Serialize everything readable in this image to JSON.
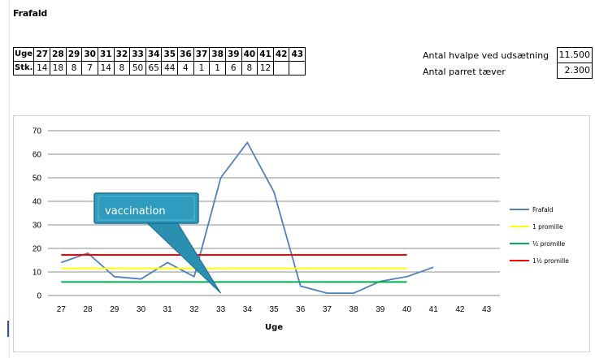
{
  "sheet": {
    "title": "Frafald"
  },
  "week_table": {
    "header_label": "Uge",
    "row_label": "Stk.",
    "weeks": [
      "27",
      "28",
      "29",
      "30",
      "31",
      "32",
      "33",
      "34",
      "35",
      "36",
      "37",
      "38",
      "39",
      "40",
      "41",
      "42",
      "43"
    ],
    "counts": [
      "14",
      "18",
      "8",
      "7",
      "14",
      "8",
      "50",
      "65",
      "44",
      "4",
      "1",
      "1",
      "6",
      "8",
      "12",
      "",
      ""
    ]
  },
  "info": {
    "puppies_label": "Antal hvalpe ved udsætning",
    "puppies_value": "11.500",
    "mated_label": "Antal parret tæver",
    "mated_value": "2.300"
  },
  "chart_data": {
    "type": "line",
    "xlabel": "Uge",
    "ylabel": "",
    "x": [
      27,
      28,
      29,
      30,
      31,
      32,
      33,
      34,
      35,
      36,
      37,
      38,
      39,
      40,
      41,
      42,
      43
    ],
    "ylim": [
      0,
      70
    ],
    "yticks": [
      0,
      10,
      20,
      30,
      40,
      50,
      60,
      70
    ],
    "grid": true,
    "legend": "right",
    "series": [
      {
        "name": "Frafald",
        "color": "#4f81bd",
        "x": [
          27,
          28,
          29,
          30,
          31,
          32,
          33,
          34,
          35,
          36,
          37,
          38,
          39,
          40,
          41
        ],
        "y": [
          14,
          18,
          8,
          7,
          14,
          8,
          50,
          65,
          44,
          4,
          1,
          1,
          6,
          8,
          12
        ]
      },
      {
        "name": "1 promille",
        "color": "#ffff00",
        "x": [
          27,
          40
        ],
        "y": [
          11.5,
          11.5
        ]
      },
      {
        "name": "½ promille",
        "color": "#00b050",
        "x": [
          27,
          40
        ],
        "y": [
          5.75,
          5.75
        ]
      },
      {
        "name": "1½ promille",
        "color": "#ff0000",
        "x": [
          27,
          40
        ],
        "y": [
          17.25,
          17.25
        ]
      }
    ],
    "annotations": [
      {
        "text": "vaccination",
        "target_x": 33,
        "target_y": 1
      }
    ]
  }
}
